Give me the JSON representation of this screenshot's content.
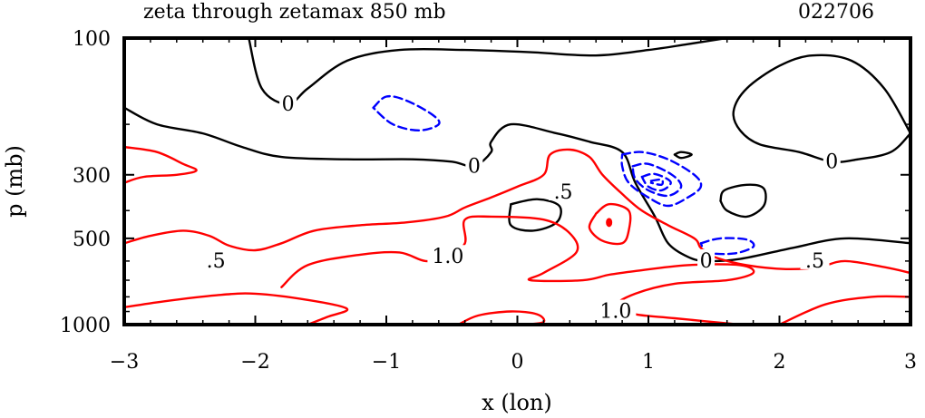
{
  "header": {
    "title": "zeta through zetamax 850 mb",
    "id": "022706"
  },
  "chart_data": {
    "type": "contour",
    "title": "zeta through zetamax 850 mb",
    "xlabel": "x (lon)",
    "ylabel": "p (mb)",
    "xlim": [
      -3,
      3
    ],
    "ylim": [
      1000,
      100
    ],
    "xticks": [
      -3,
      -2,
      -1,
      0,
      1,
      2,
      3
    ],
    "xtick_labels": [
      "−3",
      "−2",
      "−1",
      "0",
      "1",
      "2",
      "3"
    ],
    "yticks": [
      100,
      300,
      500,
      1000
    ],
    "ytick_labels": [
      "100",
      "300",
      "500",
      "1000"
    ],
    "contour_labels": [
      {
        "text": "0",
        "x": -1.75,
        "y": 170
      },
      {
        "text": "0",
        "x": -0.33,
        "y": 280
      },
      {
        "text": "0",
        "x": 1.44,
        "y": 600
      },
      {
        "text": "0",
        "x": 2.4,
        "y": 270
      },
      {
        "text": ".5",
        "x": 0.35,
        "y": 345
      },
      {
        "text": ".5",
        "x": -2.3,
        "y": 600
      },
      {
        "text": ".5",
        "x": 2.27,
        "y": 600
      },
      {
        "text": "1.0",
        "x": -0.53,
        "y": 580
      },
      {
        "text": "1.0",
        "x": 0.75,
        "y": 900
      }
    ],
    "series": [
      {
        "name": "",
        "level": 0,
        "color": "#000000",
        "style": "solid",
        "points": [
          [
            -2.05,
            100
          ],
          [
            -1.95,
            150
          ],
          [
            -1.75,
            170
          ],
          [
            -1.6,
            150
          ],
          [
            -1.3,
            120
          ],
          [
            -0.9,
            110
          ],
          [
            -0.4,
            110
          ],
          [
            0.1,
            112
          ],
          [
            0.6,
            115
          ],
          [
            1.0,
            110
          ],
          [
            1.3,
            105
          ],
          [
            1.6,
            100
          ]
        ]
      },
      {
        "name": "",
        "level": 0,
        "color": "#000000",
        "style": "solid",
        "points": [
          [
            -3,
            175
          ],
          [
            -2.75,
            200
          ],
          [
            -2.4,
            215
          ],
          [
            -2.1,
            240
          ],
          [
            -1.8,
            260
          ],
          [
            -1.3,
            265
          ],
          [
            -0.8,
            265
          ],
          [
            -0.5,
            270
          ],
          [
            -0.33,
            280
          ],
          [
            -0.2,
            250
          ],
          [
            -0.2,
            230
          ],
          [
            -0.05,
            200
          ],
          [
            0.3,
            215
          ],
          [
            0.55,
            230
          ],
          [
            0.8,
            250
          ],
          [
            0.9,
            320
          ],
          [
            1.05,
            420
          ],
          [
            1.15,
            520
          ],
          [
            1.3,
            580
          ],
          [
            1.44,
            600
          ],
          [
            1.7,
            590
          ],
          [
            2.1,
            540
          ],
          [
            2.5,
            500
          ],
          [
            3,
            520
          ]
        ]
      },
      {
        "name": "",
        "level": 0,
        "color": "#000000",
        "style": "solid",
        "points": [
          [
            3,
            215
          ],
          [
            2.85,
            250
          ],
          [
            2.6,
            265
          ],
          [
            2.4,
            270
          ],
          [
            2.15,
            250
          ],
          [
            1.85,
            235
          ],
          [
            1.7,
            210
          ],
          [
            1.65,
            180
          ],
          [
            1.75,
            150
          ],
          [
            2.0,
            125
          ],
          [
            2.25,
            115
          ],
          [
            2.55,
            120
          ],
          [
            2.8,
            150
          ],
          [
            3,
            215
          ]
        ]
      },
      {
        "name": "",
        "level": 0,
        "color": "#000000",
        "style": "solid",
        "points": [
          [
            -0.05,
            380
          ],
          [
            -0.05,
            450
          ],
          [
            0.12,
            470
          ],
          [
            0.3,
            440
          ],
          [
            0.32,
            385
          ],
          [
            0.15,
            365
          ],
          [
            -0.05,
            380
          ]
        ]
      },
      {
        "name": "",
        "level": 0,
        "color": "#000000",
        "style": "solid",
        "points": [
          [
            1.55,
            370
          ],
          [
            1.6,
            400
          ],
          [
            1.75,
            420
          ],
          [
            1.88,
            385
          ],
          [
            1.88,
            335
          ],
          [
            1.75,
            325
          ],
          [
            1.58,
            340
          ],
          [
            1.55,
            370
          ]
        ]
      },
      {
        "name": "",
        "level": 0,
        "color": "#000000",
        "style": "solid",
        "points": [
          [
            1.2,
            255
          ],
          [
            1.25,
            250
          ],
          [
            1.33,
            255
          ],
          [
            1.25,
            262
          ],
          [
            1.2,
            255
          ]
        ]
      },
      {
        "name": "",
        "level": -0.5,
        "color": "#0000ff",
        "style": "dashed",
        "points": [
          [
            -1.1,
            175
          ],
          [
            -1.0,
            160
          ],
          [
            -0.85,
            165
          ],
          [
            -0.65,
            185
          ],
          [
            -0.6,
            200
          ],
          [
            -0.75,
            210
          ],
          [
            -0.95,
            200
          ],
          [
            -1.1,
            175
          ]
        ]
      },
      {
        "name": "",
        "level": -0.5,
        "color": "#0000ff",
        "style": "dashed",
        "points": [
          [
            0.8,
            255
          ],
          [
            0.95,
            250
          ],
          [
            1.15,
            265
          ],
          [
            1.35,
            300
          ],
          [
            1.4,
            330
          ],
          [
            1.3,
            360
          ],
          [
            1.15,
            385
          ],
          [
            1.0,
            360
          ],
          [
            0.85,
            320
          ],
          [
            0.8,
            280
          ],
          [
            0.8,
            255
          ]
        ]
      },
      {
        "name": "",
        "level": -1.0,
        "color": "#0000ff",
        "style": "dashed",
        "points": [
          [
            0.88,
            280
          ],
          [
            1.0,
            275
          ],
          [
            1.18,
            300
          ],
          [
            1.25,
            330
          ],
          [
            1.15,
            355
          ],
          [
            1.0,
            340
          ],
          [
            0.9,
            310
          ],
          [
            0.88,
            280
          ]
        ]
      },
      {
        "name": "",
        "level": -1.5,
        "color": "#0000ff",
        "style": "dashed",
        "points": [
          [
            0.95,
            305
          ],
          [
            1.05,
            298
          ],
          [
            1.17,
            318
          ],
          [
            1.1,
            340
          ],
          [
            1.0,
            330
          ],
          [
            0.95,
            305
          ]
        ]
      },
      {
        "name": "",
        "level": -2.0,
        "color": "#0000ff",
        "style": "dashed",
        "points": [
          [
            1.02,
            315
          ],
          [
            1.1,
            312
          ],
          [
            1.1,
            325
          ],
          [
            1.02,
            320
          ]
        ]
      },
      {
        "name": "",
        "level": -0.5,
        "color": "#0000ff",
        "style": "dashed",
        "points": [
          [
            1.4,
            520
          ],
          [
            1.55,
            500
          ],
          [
            1.75,
            505
          ],
          [
            1.8,
            535
          ],
          [
            1.65,
            565
          ],
          [
            1.45,
            560
          ],
          [
            1.4,
            520
          ]
        ]
      },
      {
        "name": "",
        "level": 0.5,
        "color": "#ff0000",
        "style": "solid",
        "points": [
          [
            -3,
            240
          ],
          [
            -2.75,
            250
          ],
          [
            -2.55,
            275
          ],
          [
            -2.45,
            290
          ],
          [
            -2.6,
            300
          ],
          [
            -2.85,
            305
          ],
          [
            -3,
            320
          ]
        ]
      },
      {
        "name": "",
        "level": 0.5,
        "color": "#ff0000",
        "style": "solid",
        "points": [
          [
            -3,
            520
          ],
          [
            -2.8,
            490
          ],
          [
            -2.55,
            470
          ],
          [
            -2.35,
            490
          ],
          [
            -2.2,
            530
          ],
          [
            -2.0,
            550
          ],
          [
            -1.8,
            520
          ],
          [
            -1.55,
            470
          ],
          [
            -1.2,
            450
          ],
          [
            -0.85,
            440
          ],
          [
            -0.55,
            420
          ],
          [
            -0.4,
            390
          ],
          [
            -0.2,
            360
          ],
          [
            0.0,
            330
          ],
          [
            0.2,
            300
          ],
          [
            0.25,
            255
          ],
          [
            0.4,
            245
          ],
          [
            0.55,
            260
          ],
          [
            0.65,
            300
          ],
          [
            0.8,
            350
          ],
          [
            0.95,
            400
          ],
          [
            1.15,
            450
          ],
          [
            1.35,
            500
          ],
          [
            1.4,
            540
          ],
          [
            1.5,
            580
          ],
          [
            1.75,
            620
          ],
          [
            2.05,
            640
          ],
          [
            2.3,
            630
          ],
          [
            2.5,
            600
          ],
          [
            2.8,
            630
          ],
          [
            3,
            660
          ]
        ]
      },
      {
        "name": "",
        "level": 0.5,
        "color": "#ff0000",
        "style": "solid",
        "points": [
          [
            -3,
            870
          ],
          [
            -2.7,
            830
          ],
          [
            -2.3,
            790
          ],
          [
            -2.0,
            780
          ],
          [
            -1.6,
            820
          ],
          [
            -1.3,
            880
          ],
          [
            -1.45,
            940
          ],
          [
            -1.6,
            1000
          ]
        ]
      },
      {
        "name": "",
        "level": 1.0,
        "color": "#ff0000",
        "style": "solid",
        "points": [
          [
            -1.8,
            740
          ],
          [
            -1.6,
            620
          ],
          [
            -1.2,
            570
          ],
          [
            -0.9,
            560
          ],
          [
            -0.7,
            600
          ],
          [
            -0.53,
            580
          ],
          [
            -0.4,
            520
          ],
          [
            -0.4,
            430
          ],
          [
            -0.2,
            420
          ],
          [
            0.2,
            430
          ],
          [
            0.4,
            480
          ],
          [
            0.45,
            560
          ],
          [
            0.2,
            660
          ],
          [
            0.1,
            700
          ],
          [
            0.5,
            700
          ],
          [
            0.7,
            670
          ],
          [
            0.9,
            650
          ],
          [
            1.3,
            620
          ],
          [
            1.7,
            620
          ],
          [
            1.8,
            660
          ],
          [
            1.6,
            700
          ],
          [
            1.2,
            720
          ],
          [
            0.9,
            780
          ],
          [
            0.75,
            860
          ],
          [
            0.9,
            920
          ],
          [
            1.2,
            950
          ],
          [
            1.7,
            1000
          ]
        ]
      },
      {
        "name": "",
        "level": 1.5,
        "color": "#ff0000",
        "style": "solid",
        "points": [
          [
            0.6,
            410
          ],
          [
            0.7,
            380
          ],
          [
            0.85,
            400
          ],
          [
            0.85,
            470
          ],
          [
            0.8,
            520
          ],
          [
            0.65,
            510
          ],
          [
            0.55,
            460
          ],
          [
            0.6,
            410
          ]
        ]
      },
      {
        "name": "",
        "level": 1.0,
        "color": "#ff0000",
        "style": "solid",
        "points": [
          [
            -0.45,
            1000
          ],
          [
            -0.3,
            930
          ],
          [
            -0.05,
            900
          ],
          [
            0.15,
            920
          ],
          [
            0.2,
            980
          ],
          [
            0.05,
            1000
          ]
        ]
      },
      {
        "name": "",
        "level": 1.0,
        "color": "#ff0000",
        "style": "solid",
        "points": [
          [
            2.0,
            1000
          ],
          [
            2.35,
            850
          ],
          [
            2.7,
            800
          ],
          [
            3,
            800
          ]
        ]
      }
    ],
    "maximum_marker": {
      "x": 0.7,
      "y": 440,
      "color": "#ff0000"
    }
  }
}
